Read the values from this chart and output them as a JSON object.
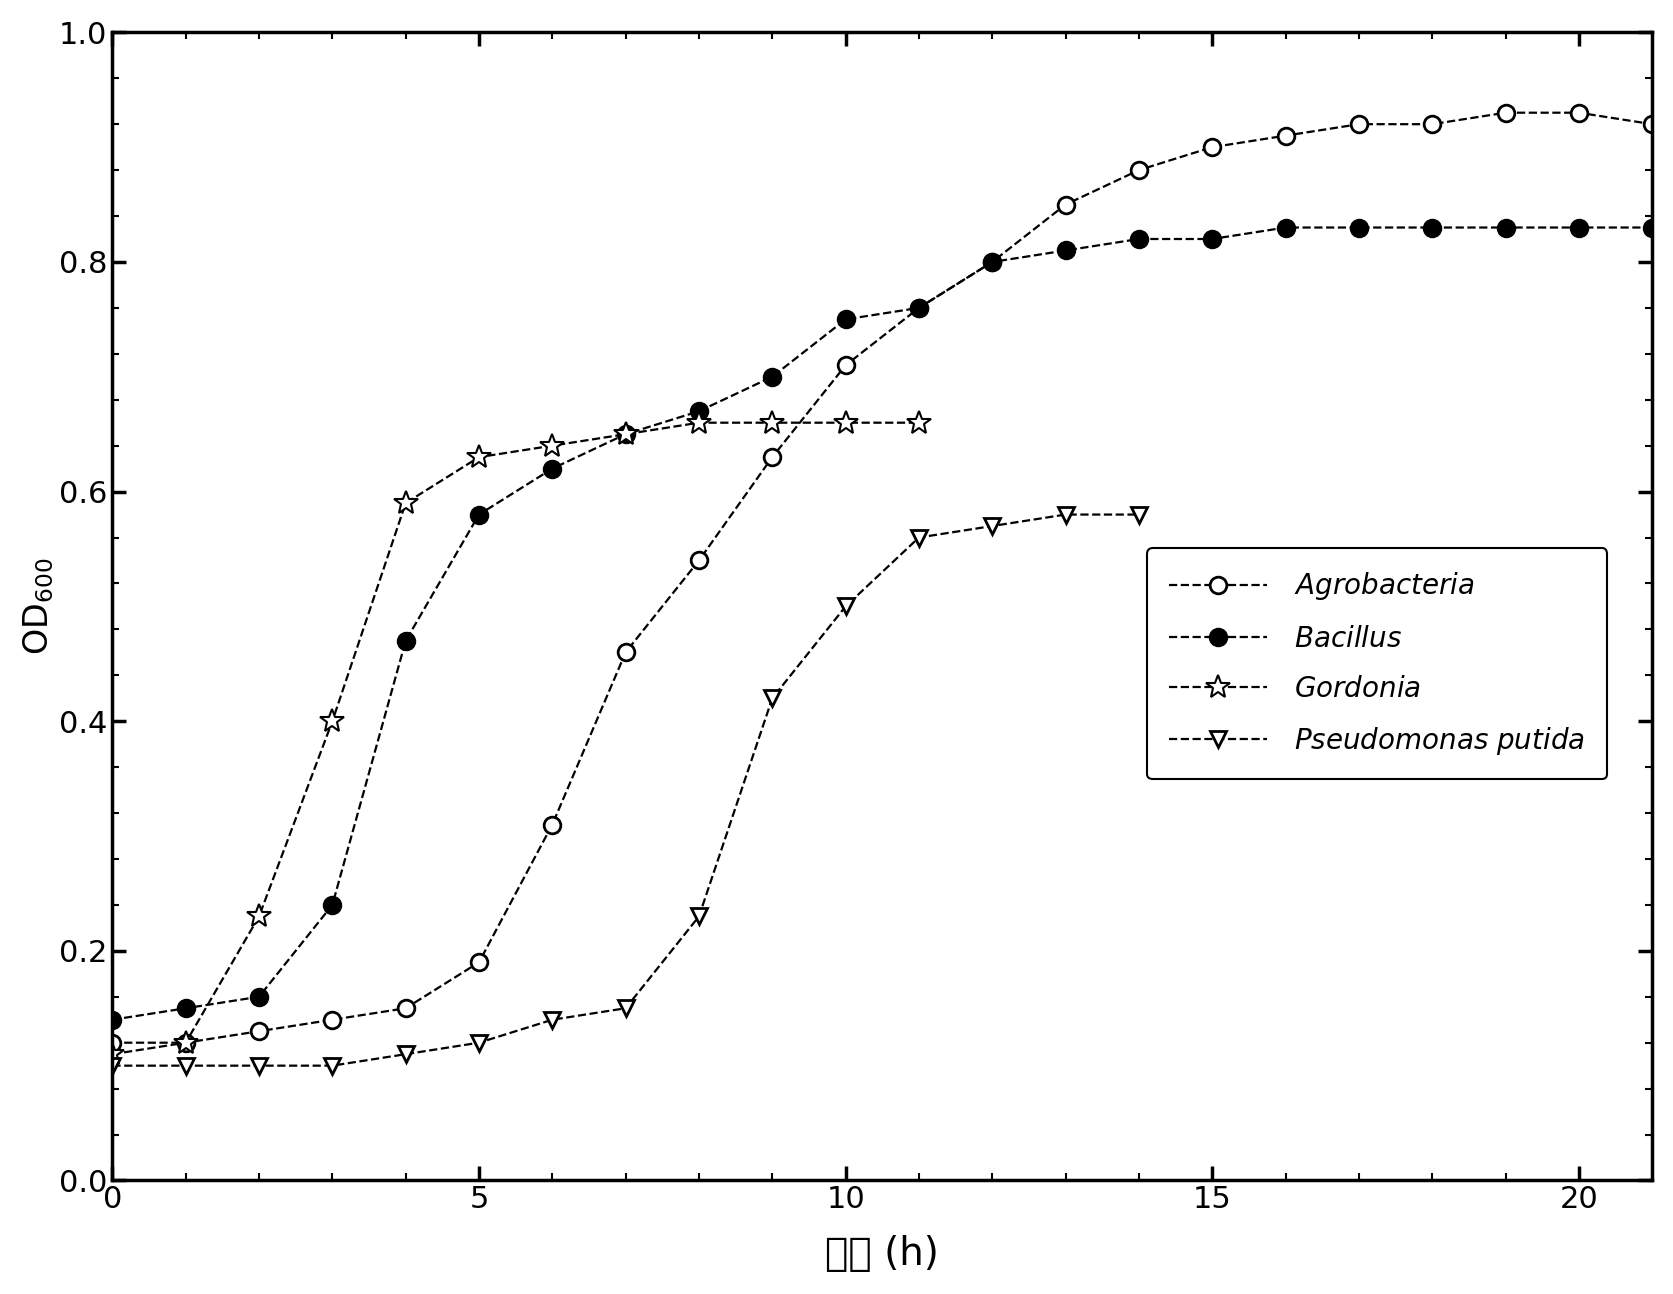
{
  "agrobacteria_x": [
    0,
    1,
    2,
    3,
    4,
    5,
    6,
    7,
    8,
    9,
    10,
    11,
    12,
    13,
    14,
    15,
    16,
    17,
    18,
    19,
    20,
    21
  ],
  "agrobacteria_y": [
    0.12,
    0.12,
    0.13,
    0.14,
    0.15,
    0.19,
    0.31,
    0.46,
    0.54,
    0.63,
    0.71,
    0.76,
    0.8,
    0.85,
    0.88,
    0.9,
    0.91,
    0.92,
    0.92,
    0.93,
    0.93,
    0.92
  ],
  "bacillus_x": [
    0,
    1,
    2,
    3,
    4,
    5,
    6,
    7,
    8,
    9,
    10,
    11,
    12,
    13,
    14,
    15,
    16,
    17,
    18,
    19,
    20,
    21
  ],
  "bacillus_y": [
    0.14,
    0.15,
    0.16,
    0.24,
    0.47,
    0.58,
    0.62,
    0.65,
    0.67,
    0.7,
    0.75,
    0.76,
    0.8,
    0.81,
    0.82,
    0.82,
    0.83,
    0.83,
    0.83,
    0.83,
    0.83,
    0.83
  ],
  "gordonia_x": [
    0,
    1,
    2,
    3,
    4,
    5,
    6,
    7,
    8,
    9,
    10,
    11
  ],
  "gordonia_y": [
    0.11,
    0.12,
    0.23,
    0.4,
    0.59,
    0.63,
    0.64,
    0.65,
    0.66,
    0.66,
    0.66,
    0.66
  ],
  "pseudomonas_x": [
    0,
    1,
    2,
    3,
    4,
    5,
    6,
    7,
    8,
    9,
    10,
    11,
    12,
    13,
    14
  ],
  "pseudomonas_y": [
    0.1,
    0.1,
    0.1,
    0.1,
    0.11,
    0.12,
    0.14,
    0.15,
    0.23,
    0.42,
    0.5,
    0.56,
    0.57,
    0.58,
    0.58
  ],
  "xlabel": "时间 (h)",
  "ylabel_main": "OD",
  "ylabel_sub": "600",
  "xlim": [
    0,
    21
  ],
  "ylim": [
    0,
    1.0
  ],
  "xticks": [
    0,
    5,
    10,
    15,
    20
  ],
  "yticks": [
    0.0,
    0.2,
    0.4,
    0.6,
    0.8,
    1.0
  ],
  "legend_labels": [
    "Agrobacteria",
    "Bacillus",
    "Gordonia",
    "Pseudomonas putida"
  ],
  "line_color": "#000000",
  "background_color": "#ffffff",
  "linewidth": 1.6,
  "markersize": 12,
  "star_markersize": 18,
  "tick_labelsize": 22,
  "ylabel_fontsize": 24,
  "xlabel_fontsize": 28,
  "legend_fontsize": 20
}
